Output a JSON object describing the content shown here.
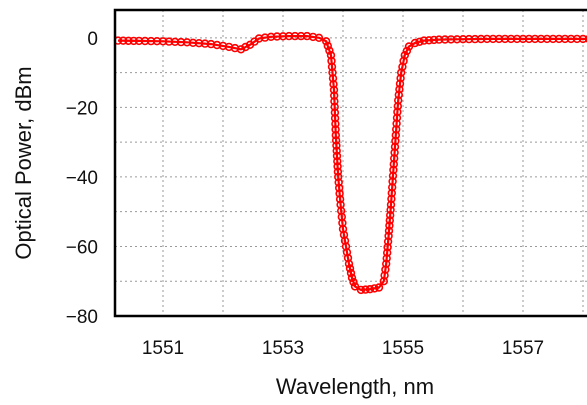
{
  "chart_data": {
    "type": "line",
    "title": "",
    "xlabel": "Wavelength, nm",
    "ylabel": "Optical Power, dBm",
    "xlim": [
      1550.2,
      1558.2
    ],
    "ylim": [
      -80,
      8
    ],
    "x_ticks": [
      1551,
      1553,
      1555,
      1557
    ],
    "y_ticks": [
      0,
      -20,
      -40,
      -60,
      -80
    ],
    "x_tick_labels": [
      "1551",
      "1553",
      "1555",
      "1557"
    ],
    "y_tick_labels": [
      "0",
      "−20",
      "−40",
      "−60",
      "−80"
    ],
    "grid": true,
    "legend": "none",
    "color": "#ff0000",
    "marker": "open-circle",
    "series": [
      {
        "x": [
          1550.25,
          1550.6,
          1551.0,
          1551.4,
          1551.8,
          1552.1,
          1552.3,
          1552.45,
          1552.6,
          1552.8,
          1553.1,
          1553.4,
          1553.6,
          1553.72,
          1553.8,
          1553.85,
          1553.88,
          1553.92,
          1553.96,
          1554.0,
          1554.05,
          1554.1,
          1554.15,
          1554.2,
          1554.3,
          1554.45,
          1554.6,
          1554.68,
          1554.72,
          1554.76,
          1554.8,
          1554.84,
          1554.88,
          1554.92,
          1554.97,
          1555.03,
          1555.1,
          1555.2,
          1555.35,
          1555.6,
          1556.0,
          1556.5,
          1557.0,
          1557.5,
          1558.0,
          1558.2
        ],
        "y": [
          -0.8,
          -0.9,
          -1.0,
          -1.3,
          -1.8,
          -2.6,
          -3.3,
          -2.0,
          -0.2,
          0.3,
          0.5,
          0.5,
          0.0,
          -1.0,
          -5.0,
          -15.0,
          -28.0,
          -40.0,
          -48.0,
          -55.0,
          -60.0,
          -65.0,
          -69.0,
          -71.5,
          -72.5,
          -72.3,
          -71.8,
          -70.0,
          -65.0,
          -57.0,
          -48.0,
          -38.0,
          -28.0,
          -18.0,
          -10.0,
          -5.0,
          -2.5,
          -1.5,
          -0.8,
          -0.5,
          -0.4,
          -0.3,
          -0.3,
          -0.3,
          -0.3,
          -0.3
        ]
      }
    ]
  }
}
